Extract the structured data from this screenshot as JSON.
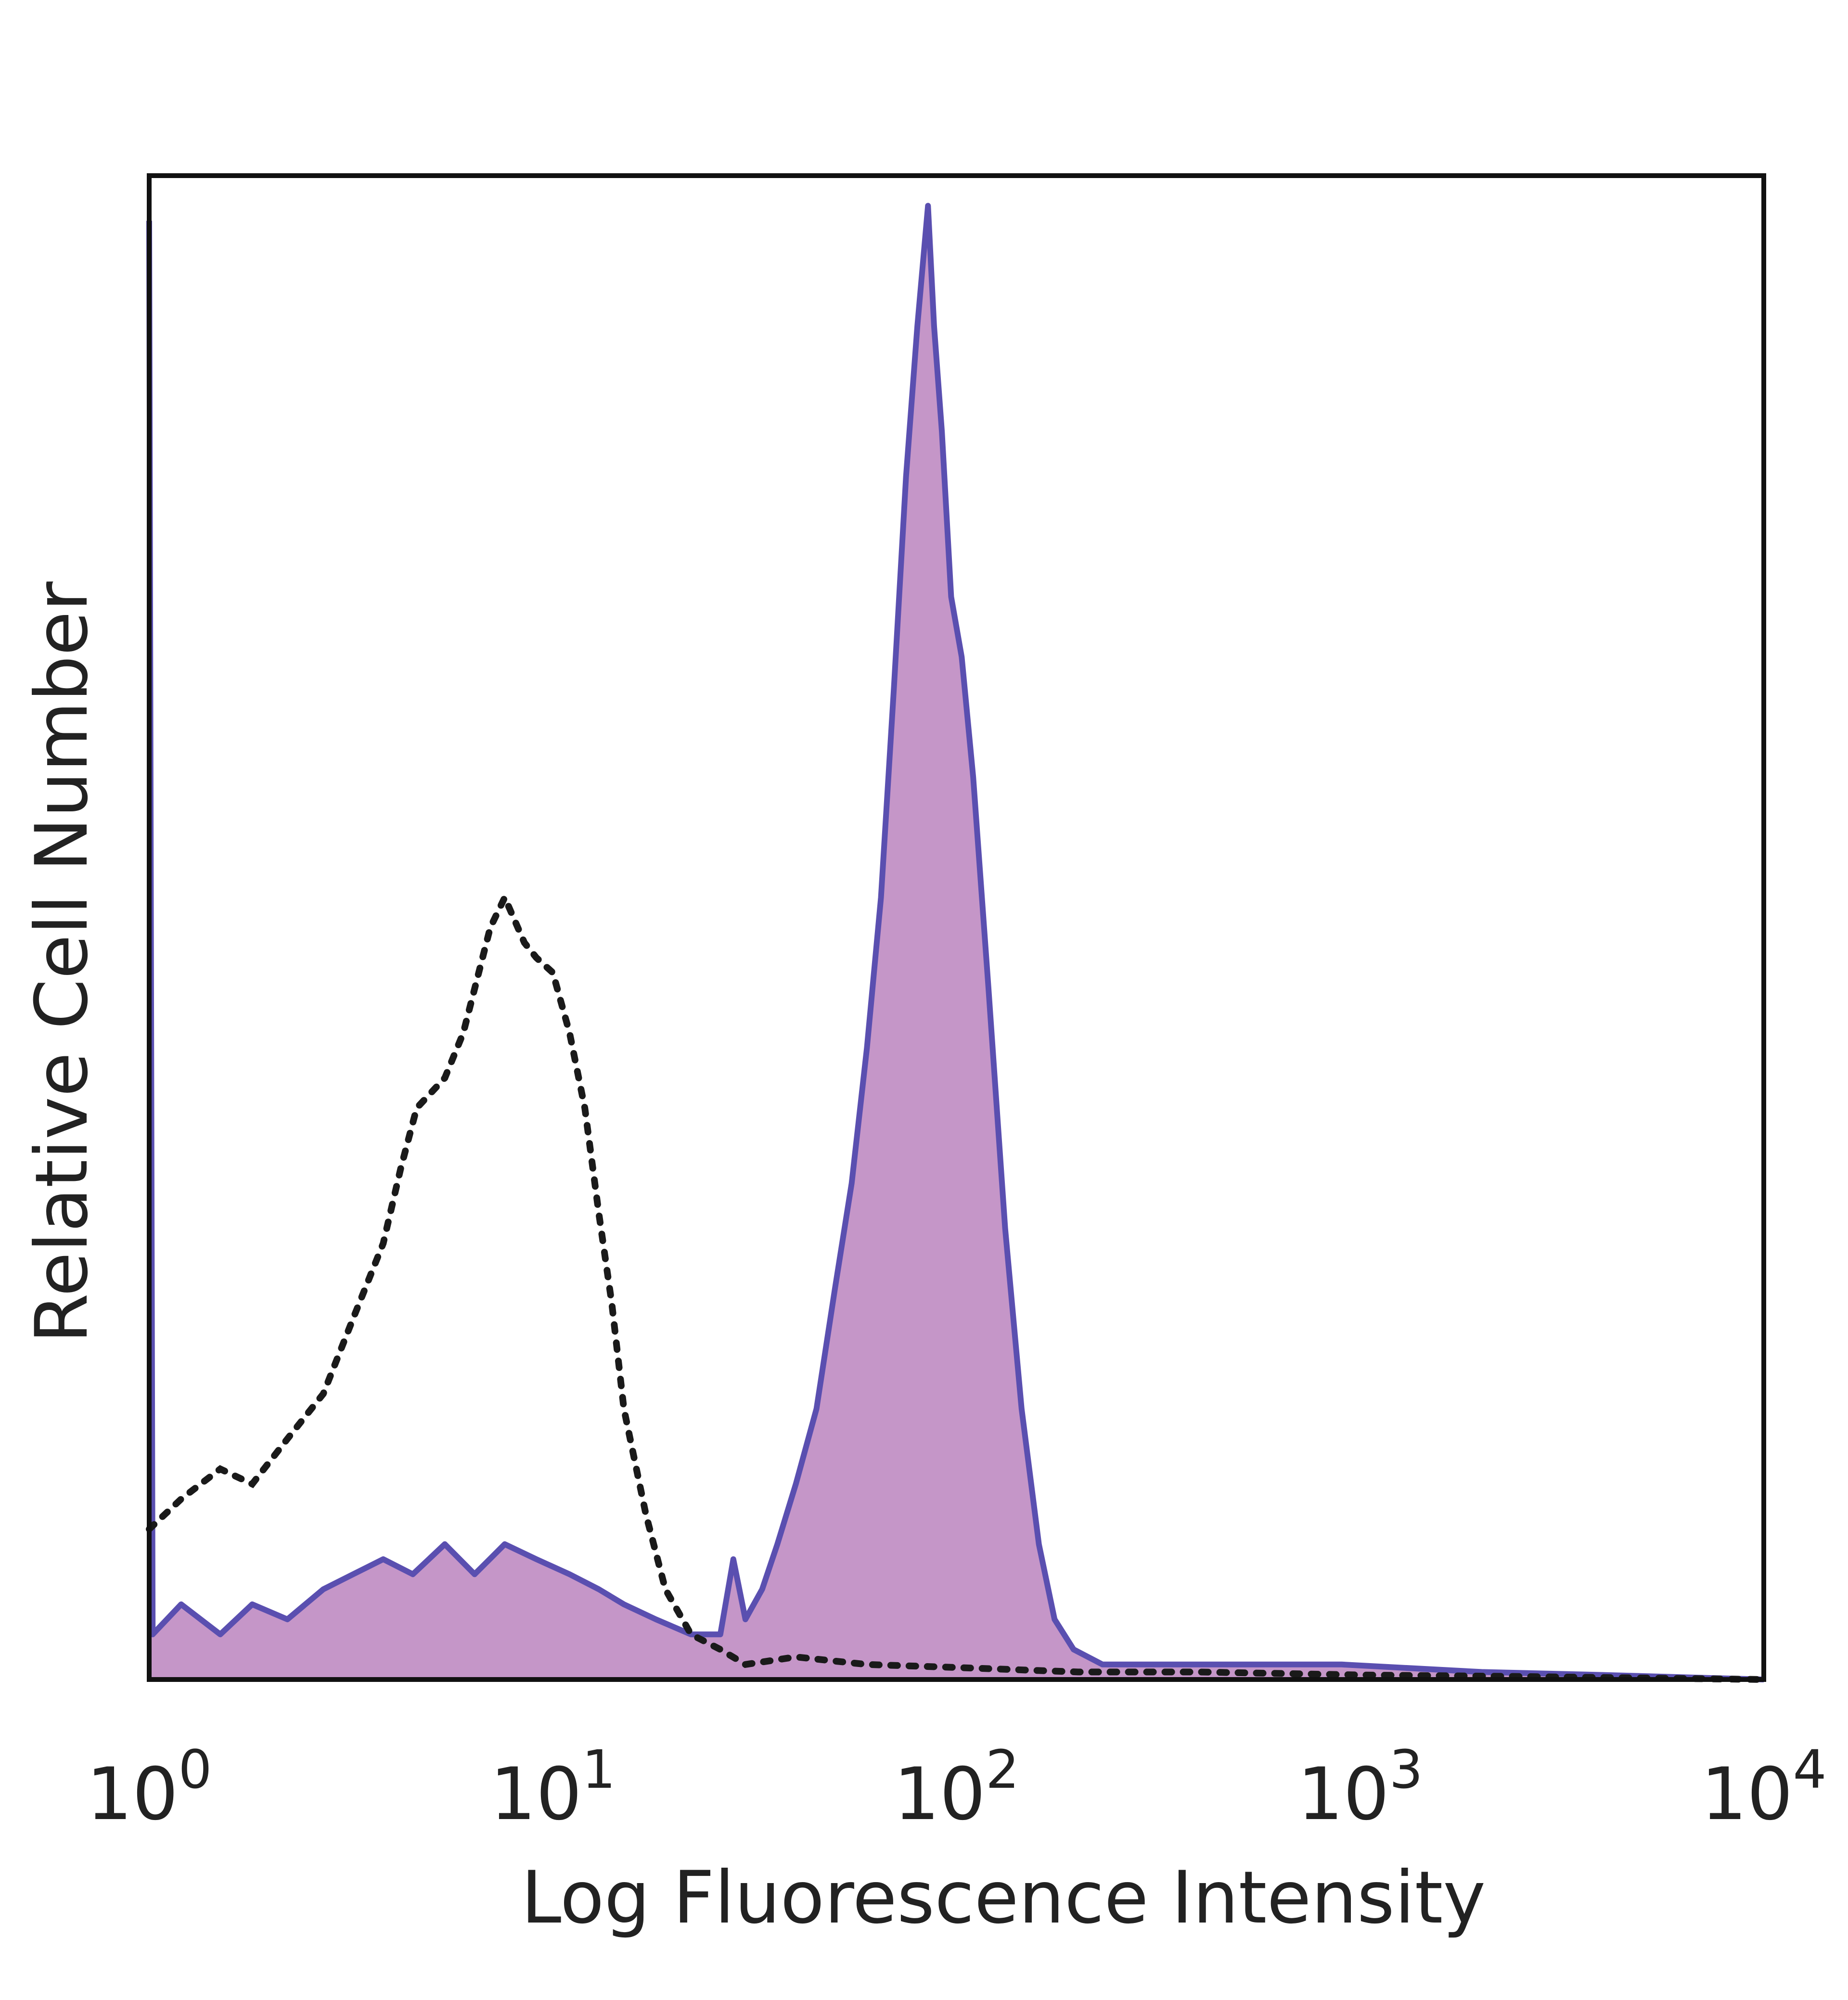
{
  "chart_data": {
    "type": "area",
    "title": "",
    "xlabel": "Log Fluorescence Intensity",
    "ylabel": "Relative Cell Number",
    "xscale": "log",
    "xlim": [
      1,
      10000
    ],
    "ylim": [
      0,
      100
    ],
    "grid": false,
    "legend": "none",
    "x_ticks": [
      {
        "base": "10",
        "exp": "0",
        "value": 1
      },
      {
        "base": "10",
        "exp": "1",
        "value": 10
      },
      {
        "base": "10",
        "exp": "2",
        "value": 100
      },
      {
        "base": "10",
        "exp": "3",
        "value": 1000
      },
      {
        "base": "10",
        "exp": "4",
        "value": 10000
      }
    ],
    "series": [
      {
        "style": "filled",
        "fill_color": "#c596c8",
        "line_color": "#5a4fb0",
        "points": [
          [
            1.0,
            97
          ],
          [
            1.02,
            3
          ],
          [
            1.2,
            5
          ],
          [
            1.5,
            3
          ],
          [
            1.8,
            5
          ],
          [
            2.2,
            4
          ],
          [
            2.7,
            6
          ],
          [
            3.2,
            7
          ],
          [
            3.8,
            8
          ],
          [
            4.5,
            7
          ],
          [
            5.4,
            9
          ],
          [
            6.4,
            7
          ],
          [
            7.6,
            9
          ],
          [
            9.1,
            8
          ],
          [
            11,
            7
          ],
          [
            13,
            6
          ],
          [
            15,
            5
          ],
          [
            18,
            4
          ],
          [
            22,
            3
          ],
          [
            26,
            3
          ],
          [
            28,
            8
          ],
          [
            30,
            4
          ],
          [
            33,
            6
          ],
          [
            36,
            9
          ],
          [
            40,
            13
          ],
          [
            45,
            18
          ],
          [
            50,
            26
          ],
          [
            55,
            33
          ],
          [
            60,
            42
          ],
          [
            65,
            52
          ],
          [
            70,
            66
          ],
          [
            75,
            80
          ],
          [
            80,
            90
          ],
          [
            85,
            98
          ],
          [
            88,
            90
          ],
          [
            92,
            83
          ],
          [
            97,
            72
          ],
          [
            103,
            68
          ],
          [
            110,
            60
          ],
          [
            120,
            46
          ],
          [
            132,
            30
          ],
          [
            145,
            18
          ],
          [
            160,
            9
          ],
          [
            175,
            4
          ],
          [
            195,
            2
          ],
          [
            230,
            1
          ],
          [
            300,
            1
          ],
          [
            500,
            1
          ],
          [
            900,
            1
          ],
          [
            2000,
            0.5
          ],
          [
            4000,
            0.3
          ],
          [
            10000,
            0
          ]
        ]
      },
      {
        "style": "dotted",
        "line_color": "#1a1a1a",
        "points": [
          [
            1.0,
            10
          ],
          [
            1.2,
            12
          ],
          [
            1.5,
            14
          ],
          [
            1.8,
            13
          ],
          [
            2.2,
            16
          ],
          [
            2.7,
            19
          ],
          [
            3.2,
            24
          ],
          [
            3.8,
            29
          ],
          [
            4.2,
            34
          ],
          [
            4.6,
            38
          ],
          [
            5.4,
            40
          ],
          [
            6.0,
            43
          ],
          [
            7.0,
            50
          ],
          [
            7.6,
            52
          ],
          [
            8.5,
            49
          ],
          [
            9.1,
            48
          ],
          [
            10,
            47
          ],
          [
            11,
            43
          ],
          [
            12,
            38
          ],
          [
            13,
            31
          ],
          [
            14,
            25
          ],
          [
            15,
            18
          ],
          [
            17,
            11
          ],
          [
            19,
            6
          ],
          [
            22,
            3
          ],
          [
            26,
            2
          ],
          [
            30,
            1
          ],
          [
            40,
            1.5
          ],
          [
            60,
            1
          ],
          [
            100,
            0.8
          ],
          [
            200,
            0.5
          ],
          [
            400,
            0.5
          ],
          [
            1000,
            0.3
          ],
          [
            2500,
            0.2
          ],
          [
            10000,
            0
          ]
        ]
      }
    ]
  }
}
